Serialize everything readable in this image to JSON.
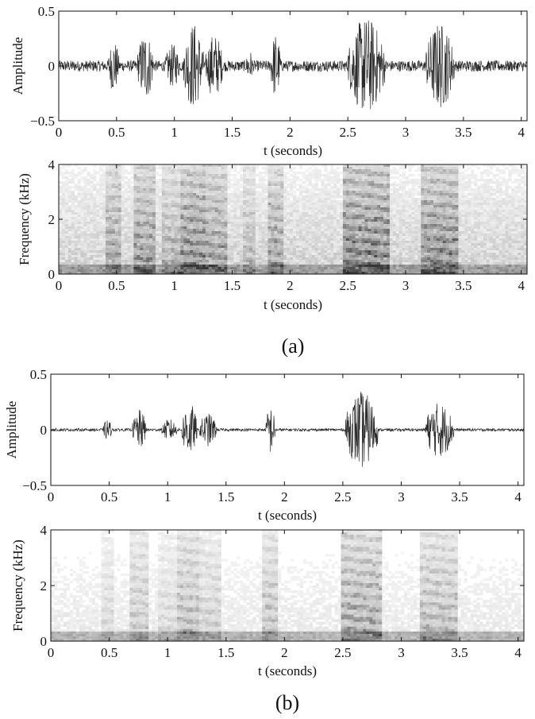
{
  "panels": [
    {
      "caption": "(a)",
      "chart_data": [
        {
          "type": "line",
          "kind": "waveform",
          "xlabel": "t (seconds)",
          "ylabel": "Amplitude",
          "xlim": [
            0,
            4.05
          ],
          "ylim": [
            -0.5,
            0.5
          ],
          "xticks": [
            0,
            0.5,
            1,
            1.5,
            2,
            2.5,
            3,
            3.5,
            4
          ],
          "xtick_labels": [
            "0",
            "0.5",
            "1",
            "1.5",
            "2",
            "2.5",
            "3",
            "3.5",
            "4"
          ],
          "yticks": [
            0.5,
            0,
            -0.5
          ],
          "ytick_labels": [
            "0.5",
            "0",
            "−0.5"
          ],
          "noise_floor": 0.05,
          "segments": [
            {
              "t": [
                0.43,
                0.52
              ],
              "peak": 0.25
            },
            {
              "t": [
                0.68,
                0.82
              ],
              "peak": 0.32
            },
            {
              "t": [
                0.92,
                1.05
              ],
              "peak": 0.2
            },
            {
              "t": [
                1.08,
                1.25
              ],
              "peak": 0.4
            },
            {
              "t": [
                1.27,
                1.42
              ],
              "peak": 0.3
            },
            {
              "t": [
                1.62,
                1.68
              ],
              "peak": 0.15
            },
            {
              "t": [
                1.83,
                1.92
              ],
              "peak": 0.3
            },
            {
              "t": [
                2.5,
                2.82
              ],
              "peak": 0.45
            },
            {
              "t": [
                3.17,
                3.42
              ],
              "peak": 0.4
            }
          ]
        },
        {
          "type": "heatmap",
          "kind": "spectrogram",
          "xlabel": "t (seconds)",
          "ylabel": "Frequency (kHz)",
          "xlim": [
            0,
            4.05
          ],
          "ylim": [
            0,
            4
          ],
          "xticks": [
            0,
            0.5,
            1,
            1.5,
            2,
            2.5,
            3,
            3.5,
            4
          ],
          "xtick_labels": [
            "0",
            "0.5",
            "1",
            "1.5",
            "2",
            "2.5",
            "3",
            "3.5",
            "4"
          ],
          "yticks": [
            4,
            2,
            0
          ],
          "ytick_labels": [
            "4",
            "2",
            "0"
          ],
          "noise_level": 0.22
        }
      ]
    },
    {
      "caption": "(b)",
      "chart_data": [
        {
          "type": "line",
          "kind": "waveform",
          "xlabel": "t (seconds)",
          "ylabel": "Amplitude",
          "xlim": [
            0,
            4.05
          ],
          "ylim": [
            -0.5,
            0.5
          ],
          "xticks": [
            0,
            0.5,
            1,
            1.5,
            2,
            2.5,
            3,
            3.5,
            4
          ],
          "xtick_labels": [
            "0",
            "0.5",
            "1",
            "1.5",
            "2",
            "2.5",
            "3",
            "3.5",
            "4"
          ],
          "yticks": [
            0.5,
            0,
            -0.5
          ],
          "ytick_labels": [
            "0.5",
            "0",
            "−0.5"
          ],
          "noise_floor": 0.012,
          "segments": [
            {
              "t": [
                0.45,
                0.52
              ],
              "peak": 0.1
            },
            {
              "t": [
                0.7,
                0.82
              ],
              "peak": 0.18
            },
            {
              "t": [
                0.95,
                1.08
              ],
              "peak": 0.1
            },
            {
              "t": [
                1.12,
                1.25
              ],
              "peak": 0.25
            },
            {
              "t": [
                1.27,
                1.42
              ],
              "peak": 0.15
            },
            {
              "t": [
                1.84,
                1.92
              ],
              "peak": 0.22
            },
            {
              "t": [
                2.52,
                2.8
              ],
              "peak": 0.35
            },
            {
              "t": [
                3.2,
                3.45
              ],
              "peak": 0.25
            }
          ]
        },
        {
          "type": "heatmap",
          "kind": "spectrogram",
          "xlabel": "t (seconds)",
          "ylabel": "Frequency (kHz)",
          "xlim": [
            0,
            4.05
          ],
          "ylim": [
            0,
            4
          ],
          "xticks": [
            0,
            0.5,
            1,
            1.5,
            2,
            2.5,
            3,
            3.5,
            4
          ],
          "xtick_labels": [
            "0",
            "0.5",
            "1",
            "1.5",
            "2",
            "2.5",
            "3",
            "3.5",
            "4"
          ],
          "yticks": [
            4,
            2,
            0
          ],
          "ytick_labels": [
            "4",
            "2",
            "0"
          ],
          "noise_level": 0.1
        }
      ]
    }
  ],
  "colors": {
    "ink": "#111111",
    "trace": "#2b2b2b",
    "background": "#ffffff"
  }
}
